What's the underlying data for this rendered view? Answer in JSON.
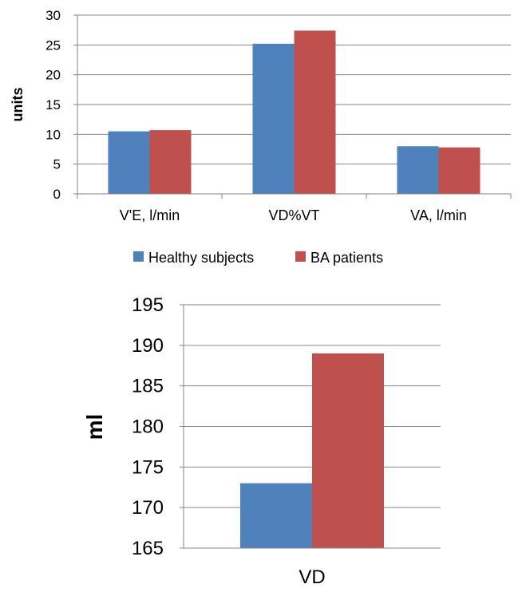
{
  "chart_data": [
    {
      "type": "bar",
      "title": "",
      "categories": [
        "V'E, l/min",
        "VD%VT",
        "VA, l/min"
      ],
      "series": [
        {
          "name": "Healthy subjects",
          "values": [
            10.5,
            25.2,
            8.0
          ],
          "color": "#4F81BD"
        },
        {
          "name": "BA patients",
          "values": [
            10.7,
            27.4,
            7.8
          ],
          "color": "#C0504D"
        }
      ],
      "xlabel": "",
      "ylabel": "units",
      "ylim": [
        0,
        30
      ],
      "yticks": [
        "0",
        "5",
        "10",
        "15",
        "20",
        "25",
        "30"
      ],
      "grid": true,
      "legend": "bottom"
    },
    {
      "type": "bar",
      "title": "",
      "categories": [
        "VD"
      ],
      "series": [
        {
          "name": "Healthy subjects",
          "values": [
            173
          ],
          "color": "#4F81BD"
        },
        {
          "name": "BA patients",
          "values": [
            189
          ],
          "color": "#C0504D"
        }
      ],
      "xlabel": "",
      "ylabel": "ml",
      "ylim": [
        165,
        195
      ],
      "yticks": [
        "165",
        "170",
        "175",
        "180",
        "185",
        "190",
        "195"
      ],
      "grid": true,
      "legend": "none"
    }
  ]
}
